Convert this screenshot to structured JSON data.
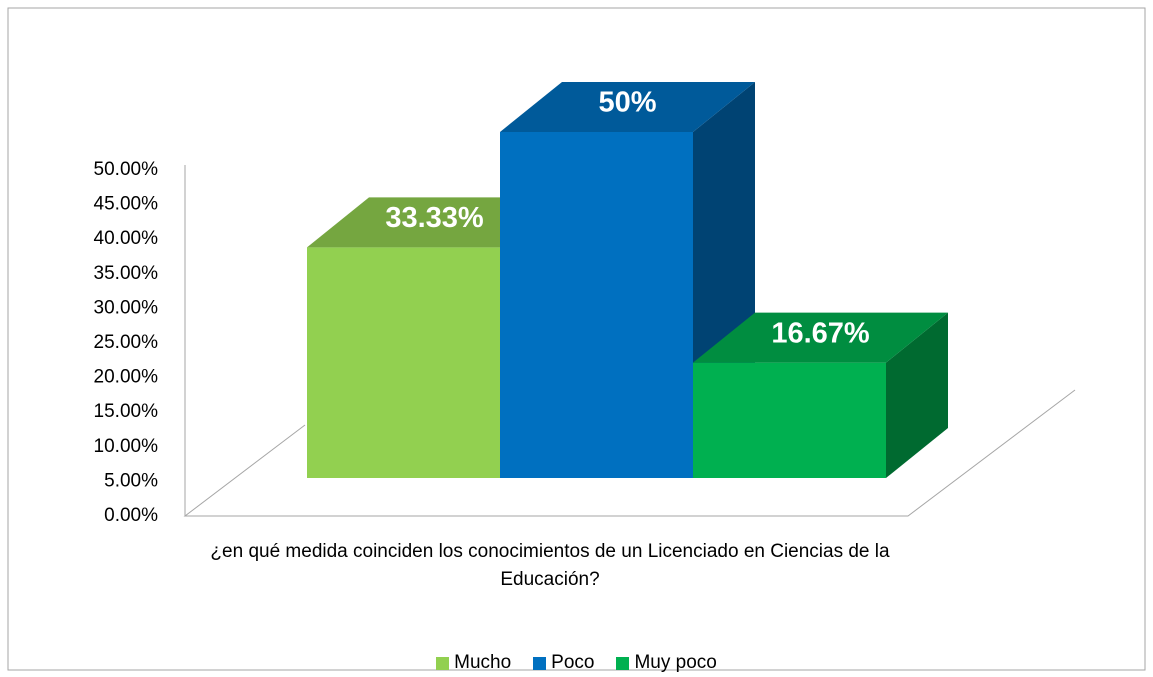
{
  "chart_data": {
    "type": "bar3d",
    "categories": [
      "¿en qué medida coinciden los conocimientos de un Licenciado en Ciencias de la Educación?"
    ],
    "series": [
      {
        "name": "Mucho",
        "color": "#92d050",
        "values": [
          33.33
        ],
        "value_labels": [
          "33.33%"
        ]
      },
      {
        "name": "Poco",
        "color": "#0070c0",
        "values": [
          50
        ],
        "value_labels": [
          "50%"
        ]
      },
      {
        "name": "Muy poco",
        "color": "#00b050",
        "values": [
          16.67
        ],
        "value_labels": [
          "16.67%"
        ]
      }
    ],
    "ylim": [
      0,
      50
    ],
    "yticks": [
      {
        "value": 0,
        "label": "0.00%"
      },
      {
        "value": 5,
        "label": "5.00%"
      },
      {
        "value": 10,
        "label": "10.00%"
      },
      {
        "value": 15,
        "label": "15.00%"
      },
      {
        "value": 20,
        "label": "20.00%"
      },
      {
        "value": 25,
        "label": "25.00%"
      },
      {
        "value": 30,
        "label": "30.00%"
      },
      {
        "value": 35,
        "label": "35.00%"
      },
      {
        "value": 40,
        "label": "40.00%"
      },
      {
        "value": 45,
        "label": "45.00%"
      },
      {
        "value": 50,
        "label": "50.00%"
      }
    ],
    "legend": "bottom"
  }
}
